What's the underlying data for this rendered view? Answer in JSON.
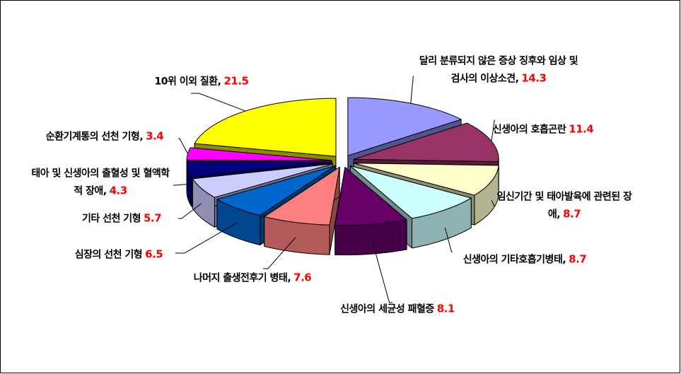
{
  "chart_data": {
    "type": "pie3d",
    "categories": [
      "달리 분류되지 않은 증상 징후와 임상 및 검사의 이상소견,",
      "신생아의 호흡곤란",
      "임신기간 및 태아발육에 관련된 장애,",
      "신생아의 기타호흡기병태,",
      "신생아의 세균성 패혈증",
      "나머지 출생전후기 병태,",
      "심장의 선천 기형",
      "기타 선천 기형",
      "태아 및 신생아의 출혈성 및 혈액학적 장애,",
      "순환기계통의 선천 기형,",
      "10위 이외 질환,"
    ],
    "values": [
      14.3,
      11.4,
      8.7,
      8.7,
      8.1,
      7.6,
      6.5,
      5.7,
      4.3,
      3.4,
      21.5
    ],
    "colors": [
      "#9999ff",
      "#993366",
      "#ffffcc",
      "#ccffff",
      "#660066",
      "#ff8080",
      "#0066cc",
      "#ccccff",
      "#000080",
      "#ff00ff",
      "#ffff00"
    ],
    "value_color": "#ff0000"
  }
}
